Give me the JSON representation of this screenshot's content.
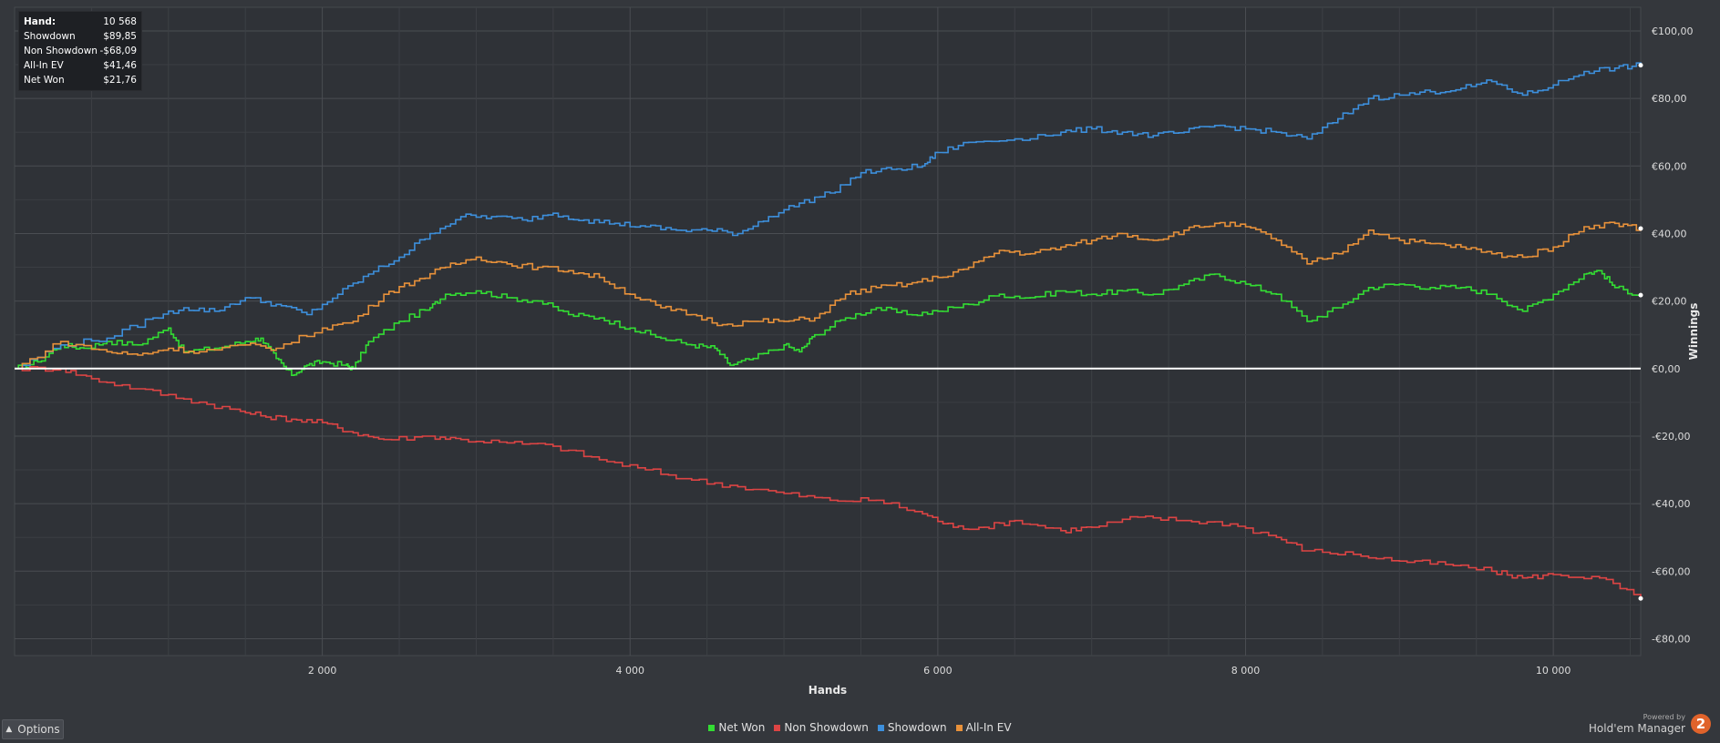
{
  "summary": {
    "rows": [
      {
        "label": "Hand:",
        "value": "10 568"
      },
      {
        "label": "Showdown",
        "value": "$89,85"
      },
      {
        "label": "Non Showdown",
        "value": "-$68,09"
      },
      {
        "label": "All-In EV",
        "value": "$41,46"
      },
      {
        "label": "Net Won",
        "value": "$21,76"
      }
    ]
  },
  "options": {
    "label": "Options"
  },
  "branding": {
    "powered_by": "Powered by",
    "name": "Hold'em Manager",
    "logo_text": "2"
  },
  "chart_data": {
    "type": "line",
    "xlabel": "Hands",
    "ylabel": "Winnings",
    "xlim": [
      0,
      10568
    ],
    "ylim": [
      -85,
      107
    ],
    "x_ticks": [
      2000,
      4000,
      6000,
      8000,
      10000
    ],
    "x_tick_labels": [
      "2 000",
      "4 000",
      "6 000",
      "8 000",
      "10 000"
    ],
    "y_ticks": [
      100,
      80,
      60,
      40,
      20,
      0,
      -20,
      -40,
      -60,
      -80
    ],
    "y_tick_labels": [
      "€100,00",
      "€80,00",
      "€60,00",
      "€40,00",
      "€20,00",
      "€0,00",
      "-€20,00",
      "-€40,00",
      "-€60,00",
      "-€80,00"
    ],
    "grid": true,
    "legend_position": "bottom-center",
    "series": [
      {
        "name": "Net Won",
        "color": "#33dd33",
        "points": [
          [
            0,
            0
          ],
          [
            150,
            2
          ],
          [
            300,
            7
          ],
          [
            450,
            6
          ],
          [
            600,
            8
          ],
          [
            800,
            7
          ],
          [
            1000,
            12
          ],
          [
            1100,
            5
          ],
          [
            1300,
            6
          ],
          [
            1500,
            8
          ],
          [
            1600,
            9
          ],
          [
            1700,
            3
          ],
          [
            1800,
            -2
          ],
          [
            1900,
            1
          ],
          [
            2000,
            2
          ],
          [
            2150,
            1
          ],
          [
            2200,
            0
          ],
          [
            2300,
            8
          ],
          [
            2500,
            14
          ],
          [
            2700,
            18
          ],
          [
            2800,
            22
          ],
          [
            3000,
            23
          ],
          [
            3200,
            21
          ],
          [
            3400,
            20
          ],
          [
            3600,
            16
          ],
          [
            3800,
            15
          ],
          [
            4000,
            12
          ],
          [
            4200,
            9
          ],
          [
            4400,
            7
          ],
          [
            4550,
            6
          ],
          [
            4650,
            1
          ],
          [
            4800,
            3
          ],
          [
            5000,
            7
          ],
          [
            5100,
            5
          ],
          [
            5200,
            10
          ],
          [
            5400,
            15
          ],
          [
            5600,
            18
          ],
          [
            5800,
            16
          ],
          [
            6000,
            17
          ],
          [
            6200,
            19
          ],
          [
            6400,
            22
          ],
          [
            6600,
            21
          ],
          [
            6800,
            23
          ],
          [
            7000,
            22
          ],
          [
            7200,
            23
          ],
          [
            7400,
            22
          ],
          [
            7600,
            25
          ],
          [
            7800,
            28
          ],
          [
            8000,
            25
          ],
          [
            8200,
            22
          ],
          [
            8400,
            14
          ],
          [
            8600,
            18
          ],
          [
            8800,
            24
          ],
          [
            9000,
            25
          ],
          [
            9200,
            24
          ],
          [
            9400,
            24
          ],
          [
            9600,
            22
          ],
          [
            9800,
            17
          ],
          [
            10000,
            22
          ],
          [
            10200,
            28
          ],
          [
            10300,
            29
          ],
          [
            10400,
            24
          ],
          [
            10568,
            21.76
          ]
        ]
      },
      {
        "name": "Non Showdown",
        "color": "#dd4444",
        "points": [
          [
            0,
            0
          ],
          [
            300,
            0
          ],
          [
            500,
            -3
          ],
          [
            800,
            -6
          ],
          [
            1100,
            -9
          ],
          [
            1400,
            -12
          ],
          [
            1600,
            -14
          ],
          [
            1800,
            -15
          ],
          [
            2000,
            -16
          ],
          [
            2200,
            -19
          ],
          [
            2400,
            -21
          ],
          [
            2700,
            -20
          ],
          [
            2900,
            -21
          ],
          [
            3200,
            -22
          ],
          [
            3500,
            -23
          ],
          [
            3800,
            -27
          ],
          [
            4100,
            -30
          ],
          [
            4400,
            -33
          ],
          [
            4700,
            -35
          ],
          [
            5000,
            -37
          ],
          [
            5300,
            -39
          ],
          [
            5600,
            -39
          ],
          [
            5900,
            -43
          ],
          [
            6100,
            -47
          ],
          [
            6300,
            -47
          ],
          [
            6500,
            -45
          ],
          [
            6800,
            -48
          ],
          [
            7000,
            -47
          ],
          [
            7300,
            -44
          ],
          [
            7600,
            -45
          ],
          [
            7900,
            -46
          ],
          [
            8200,
            -50
          ],
          [
            8400,
            -54
          ],
          [
            8700,
            -55
          ],
          [
            9000,
            -57
          ],
          [
            9300,
            -58
          ],
          [
            9600,
            -60
          ],
          [
            9800,
            -62
          ],
          [
            10000,
            -61
          ],
          [
            10300,
            -62
          ],
          [
            10568,
            -68.09
          ]
        ]
      },
      {
        "name": "Showdown",
        "color": "#3d8fdc",
        "points": [
          [
            0,
            0
          ],
          [
            300,
            7
          ],
          [
            600,
            9
          ],
          [
            900,
            15
          ],
          [
            1100,
            18
          ],
          [
            1300,
            17
          ],
          [
            1500,
            21
          ],
          [
            1700,
            19
          ],
          [
            1900,
            16
          ],
          [
            2100,
            22
          ],
          [
            2300,
            28
          ],
          [
            2500,
            33
          ],
          [
            2700,
            40
          ],
          [
            2900,
            45
          ],
          [
            3100,
            45
          ],
          [
            3300,
            44
          ],
          [
            3500,
            46
          ],
          [
            3700,
            44
          ],
          [
            3900,
            43
          ],
          [
            4100,
            42
          ],
          [
            4300,
            41
          ],
          [
            4500,
            41
          ],
          [
            4700,
            40
          ],
          [
            4900,
            45
          ],
          [
            5100,
            49
          ],
          [
            5300,
            52
          ],
          [
            5500,
            58
          ],
          [
            5700,
            59
          ],
          [
            5900,
            60
          ],
          [
            6000,
            64
          ],
          [
            6200,
            67
          ],
          [
            6500,
            68
          ],
          [
            6800,
            70
          ],
          [
            7000,
            71
          ],
          [
            7200,
            70
          ],
          [
            7400,
            69
          ],
          [
            7600,
            70
          ],
          [
            7800,
            72
          ],
          [
            8000,
            71
          ],
          [
            8200,
            70
          ],
          [
            8400,
            68
          ],
          [
            8600,
            74
          ],
          [
            8800,
            80
          ],
          [
            9000,
            81
          ],
          [
            9200,
            82
          ],
          [
            9400,
            83
          ],
          [
            9600,
            85
          ],
          [
            9800,
            81
          ],
          [
            10000,
            84
          ],
          [
            10200,
            88
          ],
          [
            10400,
            89
          ],
          [
            10568,
            89.85
          ]
        ]
      },
      {
        "name": "All-In EV",
        "color": "#e8913a",
        "points": [
          [
            0,
            0
          ],
          [
            300,
            8
          ],
          [
            600,
            5
          ],
          [
            800,
            4
          ],
          [
            1000,
            6
          ],
          [
            1200,
            5
          ],
          [
            1500,
            7
          ],
          [
            1700,
            6
          ],
          [
            2000,
            12
          ],
          [
            2200,
            14
          ],
          [
            2400,
            22
          ],
          [
            2600,
            26
          ],
          [
            2800,
            30
          ],
          [
            3000,
            33
          ],
          [
            3200,
            31
          ],
          [
            3400,
            30
          ],
          [
            3600,
            29
          ],
          [
            3800,
            27
          ],
          [
            4000,
            22
          ],
          [
            4200,
            18
          ],
          [
            4400,
            16
          ],
          [
            4600,
            13
          ],
          [
            4800,
            14
          ],
          [
            5000,
            14
          ],
          [
            5200,
            15
          ],
          [
            5400,
            22
          ],
          [
            5600,
            24
          ],
          [
            5800,
            25
          ],
          [
            6000,
            27
          ],
          [
            6200,
            30
          ],
          [
            6400,
            35
          ],
          [
            6600,
            34
          ],
          [
            6800,
            36
          ],
          [
            7000,
            38
          ],
          [
            7200,
            40
          ],
          [
            7400,
            38
          ],
          [
            7600,
            41
          ],
          [
            7800,
            43
          ],
          [
            8000,
            42
          ],
          [
            8200,
            38
          ],
          [
            8400,
            31
          ],
          [
            8600,
            34
          ],
          [
            8800,
            41
          ],
          [
            9000,
            38
          ],
          [
            9200,
            37
          ],
          [
            9400,
            36
          ],
          [
            9600,
            34
          ],
          [
            9800,
            33
          ],
          [
            10000,
            36
          ],
          [
            10200,
            42
          ],
          [
            10400,
            43
          ],
          [
            10568,
            41.46
          ]
        ]
      }
    ]
  }
}
